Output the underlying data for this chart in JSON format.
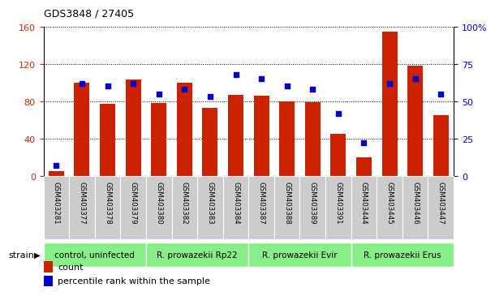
{
  "title": "GDS3848 / 27405",
  "samples": [
    "GSM403281",
    "GSM403377",
    "GSM403378",
    "GSM403379",
    "GSM403380",
    "GSM403382",
    "GSM403383",
    "GSM403384",
    "GSM403387",
    "GSM403388",
    "GSM403389",
    "GSM403391",
    "GSM403444",
    "GSM403445",
    "GSM403446",
    "GSM403447"
  ],
  "counts": [
    5,
    100,
    77,
    103,
    78,
    100,
    73,
    87,
    86,
    80,
    79,
    45,
    20,
    155,
    118,
    65
  ],
  "percentile": [
    7,
    62,
    60,
    62,
    55,
    58,
    53,
    68,
    65,
    60,
    58,
    42,
    22,
    62,
    65,
    55
  ],
  "group_defs": [
    {
      "label": "control, uninfected",
      "start": 0,
      "end": 3
    },
    {
      "label": "R. prowazekii Rp22",
      "start": 4,
      "end": 7
    },
    {
      "label": "R. prowazekii Evir",
      "start": 8,
      "end": 11
    },
    {
      "label": "R. prowazekii Erus",
      "start": 12,
      "end": 15
    }
  ],
  "bar_color": "#cc2200",
  "dot_color": "#0000cc",
  "group_color": "#88ee88",
  "tick_bg_color": "#cccccc",
  "left_yticks": [
    0,
    40,
    80,
    120,
    160
  ],
  "right_ytick_vals": [
    0,
    25,
    50,
    75,
    100
  ],
  "right_ytick_labels": [
    "0",
    "25",
    "50",
    "75",
    "100%"
  ],
  "left_ylabel_color": "#cc2200",
  "right_ylabel_color": "#0000cc",
  "legend_count_label": "count",
  "legend_pct_label": "percentile rank within the sample",
  "ylim_left": [
    0,
    160
  ],
  "ylim_right": [
    0,
    100
  ]
}
